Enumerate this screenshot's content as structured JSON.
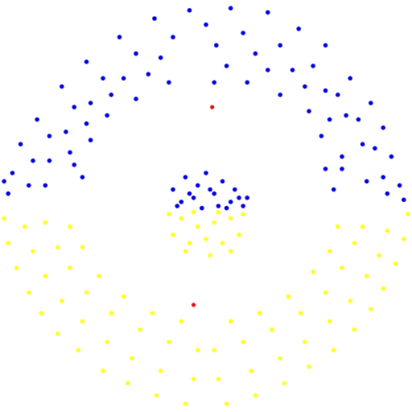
{
  "chart_data": {
    "type": "scatter",
    "title": "",
    "xlabel": "",
    "ylabel": "",
    "xlim": [
      -1.0,
      1.0
    ],
    "ylim": [
      -1.0,
      1.0
    ],
    "grid": false,
    "legend": "none",
    "colors": {
      "upper": "#0000e0",
      "lower": "#ffff1a",
      "marker": "#e01010"
    },
    "series": [
      {
        "values": [
          [
            0.12,
            0.96
          ],
          [
            0.3,
            0.94
          ],
          [
            -0.08,
            0.95
          ],
          [
            -0.25,
            0.91
          ],
          [
            0.45,
            0.86
          ],
          [
            -0.42,
            0.82
          ],
          [
            0.58,
            0.78
          ],
          [
            -0.58,
            0.7
          ],
          [
            0.7,
            0.62
          ],
          [
            -0.7,
            0.58
          ],
          [
            0.8,
            0.5
          ],
          [
            -0.82,
            0.42
          ],
          [
            0.86,
            0.38
          ],
          [
            -0.9,
            0.3
          ],
          [
            0.9,
            0.24
          ],
          [
            -0.94,
            0.16
          ],
          [
            0.94,
            0.1
          ],
          [
            -0.96,
            0.06
          ],
          [
            0.96,
            0.03
          ],
          [
            -0.98,
            0.12
          ],
          [
            0.0,
            0.88
          ],
          [
            0.18,
            0.84
          ],
          [
            -0.16,
            0.82
          ],
          [
            0.36,
            0.78
          ],
          [
            -0.34,
            0.74
          ],
          [
            0.52,
            0.68
          ],
          [
            -0.5,
            0.62
          ],
          [
            0.64,
            0.54
          ],
          [
            -0.64,
            0.48
          ],
          [
            0.74,
            0.42
          ],
          [
            -0.76,
            0.34
          ],
          [
            0.82,
            0.28
          ],
          [
            -0.84,
            0.22
          ],
          [
            0.86,
            0.14
          ],
          [
            -0.86,
            0.1
          ],
          [
            0.88,
            0.06
          ],
          [
            0.05,
            0.78
          ],
          [
            0.24,
            0.74
          ],
          [
            -0.22,
            0.72
          ],
          [
            0.42,
            0.66
          ],
          [
            -0.4,
            0.62
          ],
          [
            0.58,
            0.56
          ],
          [
            -0.56,
            0.5
          ],
          [
            0.68,
            0.44
          ],
          [
            -0.68,
            0.36
          ],
          [
            0.76,
            0.3
          ],
          [
            -0.76,
            0.22
          ],
          [
            0.78,
            0.12
          ],
          [
            -0.78,
            0.1
          ],
          [
            0.66,
            0.18
          ],
          [
            -0.64,
            0.2
          ],
          [
            0.1,
            0.68
          ],
          [
            0.3,
            0.66
          ],
          [
            -0.28,
            0.64
          ],
          [
            0.48,
            0.58
          ],
          [
            -0.46,
            0.54
          ],
          [
            0.6,
            0.42
          ],
          [
            -0.58,
            0.4
          ],
          [
            0.66,
            0.24
          ],
          [
            -0.66,
            0.26
          ],
          [
            0.04,
            0.6
          ],
          [
            0.2,
            0.6
          ],
          [
            -0.18,
            0.6
          ],
          [
            0.36,
            0.54
          ],
          [
            -0.34,
            0.52
          ],
          [
            0.5,
            0.46
          ],
          [
            -0.48,
            0.44
          ],
          [
            0.56,
            0.34
          ],
          [
            -0.56,
            0.32
          ],
          [
            0.58,
            0.18
          ],
          [
            -0.6,
            0.14
          ],
          [
            0.62,
            0.08
          ],
          [
            -0.1,
            0.14
          ],
          [
            0.0,
            0.16
          ],
          [
            0.08,
            0.12
          ],
          [
            0.14,
            0.08
          ],
          [
            0.2,
            0.04
          ],
          [
            -0.16,
            0.08
          ],
          [
            -0.12,
            0.02
          ],
          [
            -0.04,
            0.1
          ],
          [
            0.04,
            0.06
          ],
          [
            0.12,
            0.02
          ],
          [
            -0.06,
            0.04
          ],
          [
            0.18,
            0.0
          ],
          [
            0.06,
            0.0
          ],
          [
            -0.14,
            0.0
          ],
          [
            -0.02,
            -0.01
          ],
          [
            0.1,
            -0.01
          ],
          [
            -0.08,
            0.06
          ],
          [
            0.16,
            0.04
          ],
          [
            0.02,
            0.08
          ]
        ]
      },
      {
        "values": [
          [
            -0.98,
            -0.06
          ],
          [
            0.98,
            -0.04
          ],
          [
            -0.96,
            -0.18
          ],
          [
            0.96,
            -0.16
          ],
          [
            -0.92,
            -0.3
          ],
          [
            0.92,
            -0.28
          ],
          [
            -0.86,
            -0.42
          ],
          [
            0.86,
            -0.4
          ],
          [
            -0.8,
            -0.52
          ],
          [
            0.8,
            -0.5
          ],
          [
            -0.72,
            -0.62
          ],
          [
            0.72,
            -0.6
          ],
          [
            -0.62,
            -0.7
          ],
          [
            0.62,
            -0.7
          ],
          [
            -0.5,
            -0.8
          ],
          [
            0.5,
            -0.78
          ],
          [
            -0.38,
            -0.86
          ],
          [
            0.38,
            -0.86
          ],
          [
            -0.24,
            -0.92
          ],
          [
            0.24,
            -0.92
          ],
          [
            -0.1,
            -0.96
          ],
          [
            0.1,
            -0.96
          ],
          [
            -0.88,
            -0.1
          ],
          [
            0.88,
            -0.12
          ],
          [
            -0.84,
            -0.22
          ],
          [
            0.84,
            -0.24
          ],
          [
            -0.78,
            -0.34
          ],
          [
            0.78,
            -0.34
          ],
          [
            -0.7,
            -0.46
          ],
          [
            0.7,
            -0.46
          ],
          [
            -0.6,
            -0.56
          ],
          [
            0.6,
            -0.56
          ],
          [
            -0.48,
            -0.66
          ],
          [
            0.48,
            -0.66
          ],
          [
            -0.36,
            -0.74
          ],
          [
            0.36,
            -0.74
          ],
          [
            -0.22,
            -0.8
          ],
          [
            0.22,
            -0.8
          ],
          [
            -0.06,
            -0.84
          ],
          [
            0.06,
            -0.84
          ],
          [
            -0.78,
            -0.08
          ],
          [
            0.76,
            -0.1
          ],
          [
            -0.72,
            -0.2
          ],
          [
            0.72,
            -0.18
          ],
          [
            -0.66,
            -0.3
          ],
          [
            0.66,
            -0.3
          ],
          [
            -0.58,
            -0.42
          ],
          [
            0.58,
            -0.42
          ],
          [
            -0.46,
            -0.52
          ],
          [
            0.46,
            -0.52
          ],
          [
            -0.32,
            -0.6
          ],
          [
            0.32,
            -0.6
          ],
          [
            -0.18,
            -0.66
          ],
          [
            0.18,
            -0.66
          ],
          [
            -0.04,
            -0.7
          ],
          [
            0.04,
            -0.7
          ],
          [
            -0.66,
            -0.1
          ],
          [
            0.64,
            -0.1
          ],
          [
            -0.6,
            -0.2
          ],
          [
            0.6,
            -0.22
          ],
          [
            -0.52,
            -0.34
          ],
          [
            0.52,
            -0.32
          ],
          [
            -0.4,
            -0.44
          ],
          [
            0.4,
            -0.44
          ],
          [
            -0.26,
            -0.52
          ],
          [
            0.26,
            -0.52
          ],
          [
            -0.12,
            -0.56
          ],
          [
            0.12,
            -0.56
          ],
          [
            -0.12,
            -0.06
          ],
          [
            -0.04,
            -0.1
          ],
          [
            0.04,
            -0.08
          ],
          [
            0.12,
            -0.06
          ],
          [
            -0.16,
            -0.14
          ],
          [
            -0.08,
            -0.18
          ],
          [
            0.0,
            -0.16
          ],
          [
            0.08,
            -0.18
          ],
          [
            0.16,
            -0.14
          ],
          [
            -0.1,
            -0.22
          ],
          [
            0.02,
            -0.24
          ],
          [
            0.12,
            -0.22
          ],
          [
            -0.18,
            -0.04
          ],
          [
            0.18,
            -0.04
          ],
          [
            -0.06,
            -0.03
          ],
          [
            0.06,
            -0.03
          ]
        ]
      },
      {
        "values": [
          [
            0.03,
            0.48
          ],
          [
            -0.06,
            -0.48
          ]
        ]
      }
    ]
  }
}
